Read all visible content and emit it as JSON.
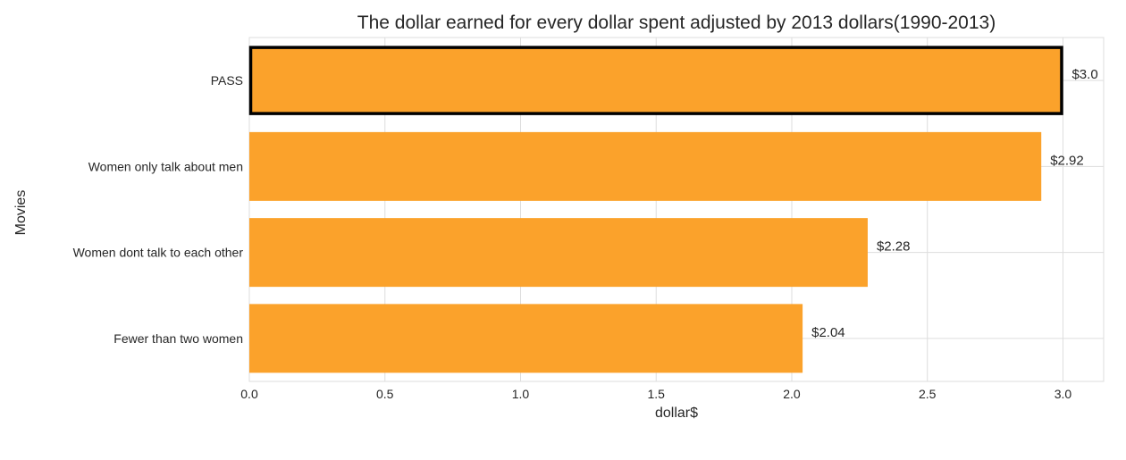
{
  "chart_data": {
    "type": "bar",
    "orientation": "horizontal",
    "title": "The dollar earned for every dollar spent adjusted by 2013 dollars(1990-2013)",
    "xlabel": "dollar$",
    "ylabel": "Movies",
    "categories": [
      "PASS",
      "Women only talk about men",
      "Women dont talk to each other",
      "Fewer than two women"
    ],
    "values": [
      3.0,
      2.92,
      2.28,
      2.04
    ],
    "data_labels": [
      "$3.0",
      "$2.92",
      "$2.28",
      "$2.04"
    ],
    "highlighted_category": "PASS",
    "xlim": [
      0,
      3.15
    ],
    "x_ticks": [
      0.0,
      0.5,
      1.0,
      1.5,
      2.0,
      2.5,
      3.0
    ],
    "x_tick_labels": [
      "0.0",
      "0.5",
      "1.0",
      "1.5",
      "2.0",
      "2.5",
      "3.0"
    ],
    "grid": true,
    "colors": {
      "bar": "#FBA22B",
      "highlight_edge": "#000000",
      "grid": "#DDDDDD",
      "text": "#262626"
    }
  }
}
